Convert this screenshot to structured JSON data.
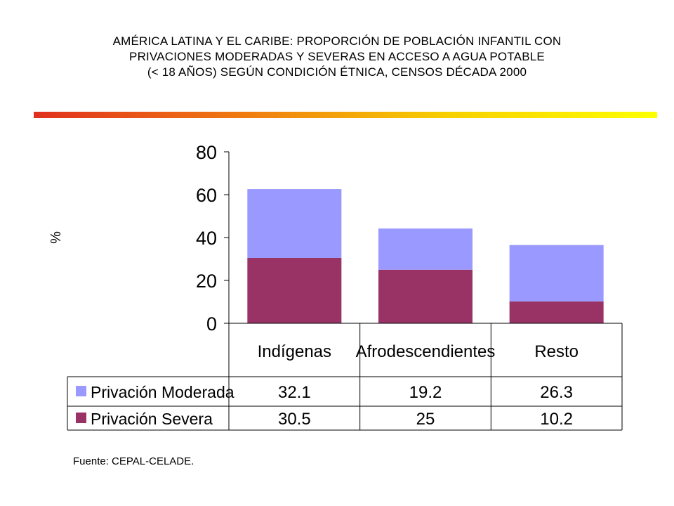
{
  "title_lines": [
    "AMÉRICA LATINA Y EL CARIBE: PROPORCIÓN DE POBLACIÓN INFANTIL  CON",
    "PRIVACIONES MODERADAS Y SEVERAS EN ACCESO A AGUA POTABLE",
    "(< 18 AÑOS) SEGÚN CONDICIÓN ÉTNICA, CENSOS DÉCADA 2000"
  ],
  "source": "Fuente: CEPAL-CELADE.",
  "colors": {
    "accent_gradient": [
      "#e0301e",
      "#f07a10",
      "#f7d000",
      "#ffff00"
    ],
    "moderada": "#9999ff",
    "severa": "#993366"
  },
  "chart_data": {
    "type": "bar",
    "stacked": true,
    "categories": [
      "Indígenas",
      "Afrodescendientes",
      "Resto"
    ],
    "series": [
      {
        "name": "Privación Severa",
        "values": [
          30.5,
          25,
          10.2
        ],
        "color": "#993366"
      },
      {
        "name": "Privación Moderada",
        "values": [
          32.1,
          19.2,
          26.3
        ],
        "color": "#9999ff"
      }
    ],
    "ylabel": "%",
    "ylim": [
      0,
      80
    ],
    "yticks": [
      0,
      20,
      40,
      60,
      80
    ],
    "data_table": true,
    "table_row_order": [
      "Privación Moderada",
      "Privación Severa"
    ]
  }
}
